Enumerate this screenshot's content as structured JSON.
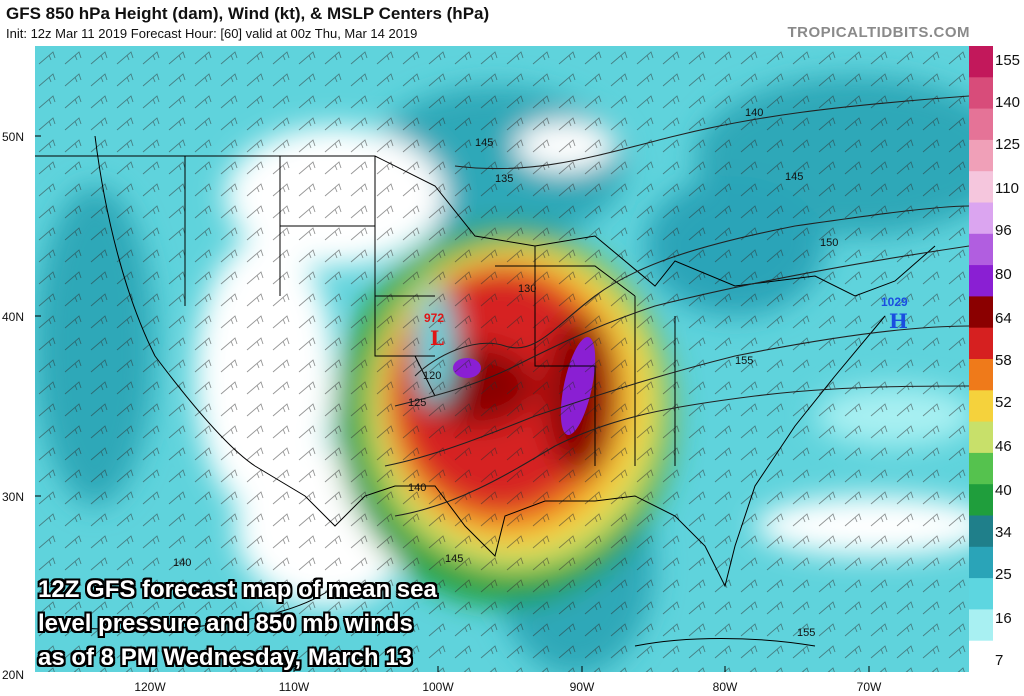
{
  "header": {
    "title": "GFS 850 hPa Height (dam), Wind (kt), & MSLP Centers (hPa)",
    "subtitle": "Init: 12z Mar 11 2019   Forecast Hour: [60]   valid at 00z Thu, Mar 14 2019",
    "brand": "TROPICALTIDBITS.COM"
  },
  "caption": {
    "line1": "12Z GFS forecast map of mean sea",
    "line2": "level pressure and 850 mb winds",
    "line3": "as of 8 PM Wednesday, March 13"
  },
  "axes": {
    "lat_labels": [
      "50N",
      "40N",
      "30N",
      "20N"
    ],
    "lon_labels": [
      "120W",
      "110W",
      "100W",
      "90W",
      "80W",
      "70W"
    ]
  },
  "colorbar": {
    "labels": [
      "155",
      "140",
      "125",
      "110",
      "96",
      "80",
      "64",
      "58",
      "52",
      "46",
      "40",
      "34",
      "25",
      "16",
      "7"
    ],
    "colors": [
      "#c2185b",
      "#d84c7a",
      "#e57397",
      "#f0a0b8",
      "#f5c6dd",
      "#dba5f0",
      "#b15ee0",
      "#8a1fd3",
      "#8b0000",
      "#d62020",
      "#ef7a1a",
      "#f5d23c",
      "#c8e06a",
      "#55c24e",
      "#1f9e3c",
      "#1f7f8a",
      "#2aa4b8",
      "#5dd6e0",
      "#a8f0f2",
      "#ffffff"
    ]
  },
  "centers": [
    {
      "type": "L",
      "pressure": "972",
      "color": "#e01515"
    },
    {
      "type": "H",
      "pressure": "1029",
      "color": "#1a4de0"
    }
  ],
  "contours": [
    "120",
    "125",
    "130",
    "135",
    "140",
    "140",
    "145",
    "150",
    "155",
    "155",
    "145",
    "140",
    "150",
    "145"
  ]
}
